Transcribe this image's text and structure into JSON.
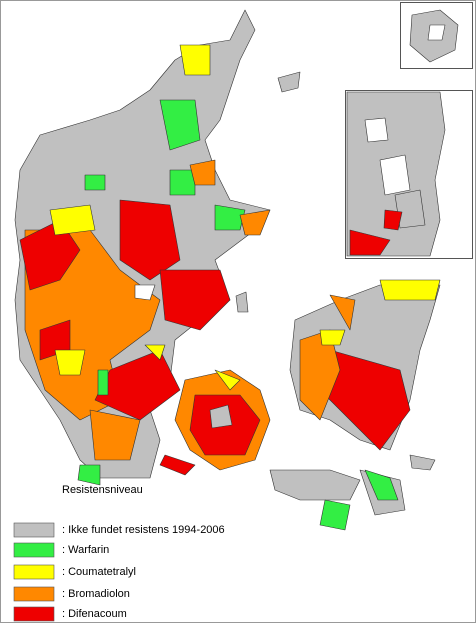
{
  "legend": {
    "title": "Resistensniveau",
    "items": [
      {
        "label": ": Ikke fundet resistens 1994-2006",
        "color": "#c0c0c0"
      },
      {
        "label": ": Warfarin",
        "color": "#33ee44"
      },
      {
        "label": ": Coumatetralyl",
        "color": "#ffff00"
      },
      {
        "label": ": Bromadiolon",
        "color": "#ff8800"
      },
      {
        "label": ": Difenacoum",
        "color": "#ee0000"
      }
    ]
  }
}
